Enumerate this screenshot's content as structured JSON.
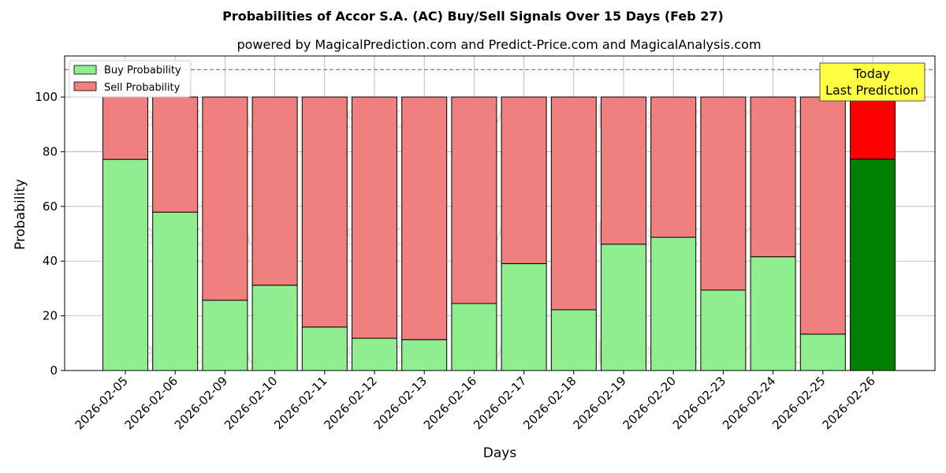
{
  "chart_data": {
    "type": "bar",
    "stacked": true,
    "title": "Probabilities of Accor S.A. (AC) Buy/Sell Signals Over 15 Days (Feb 27)",
    "subtitle": "powered by MagicalPrediction.com and Predict-Price.com and MagicalAnalysis.com",
    "xlabel": "Days",
    "ylabel": "Probability",
    "ylim": [
      0,
      115
    ],
    "yticks": [
      0,
      20,
      40,
      60,
      80,
      100
    ],
    "grid": true,
    "legend_position": "top-left",
    "reference_line": 110,
    "categories": [
      "2026-02-05",
      "2026-02-06",
      "2026-02-09",
      "2026-02-10",
      "2026-02-11",
      "2026-02-12",
      "2026-02-13",
      "2026-02-16",
      "2026-02-17",
      "2026-02-18",
      "2026-02-19",
      "2026-02-20",
      "2026-02-23",
      "2026-02-24",
      "2026-02-25",
      "2026-02-26"
    ],
    "series": [
      {
        "name": "Buy Probability",
        "color": "#90ee90",
        "highlight_color": "#008000",
        "values": [
          77.2,
          57.9,
          25.7,
          31.2,
          15.9,
          11.8,
          11.3,
          24.5,
          39.1,
          22.2,
          46.2,
          48.7,
          29.4,
          41.6,
          13.3,
          77.3
        ]
      },
      {
        "name": "Sell Probability",
        "color": "#f08080",
        "highlight_color": "#ff0000",
        "values": [
          22.8,
          42.1,
          74.3,
          68.8,
          84.1,
          88.2,
          88.7,
          75.5,
          60.9,
          77.8,
          53.8,
          51.3,
          70.6,
          58.4,
          86.7,
          22.7
        ]
      }
    ],
    "annotation": {
      "lines": [
        "Today",
        "Last Prediction"
      ],
      "background": "#ffff44"
    },
    "watermarks": [
      "MagicalAnalysis.com",
      "MagicalPrediction.com"
    ]
  }
}
